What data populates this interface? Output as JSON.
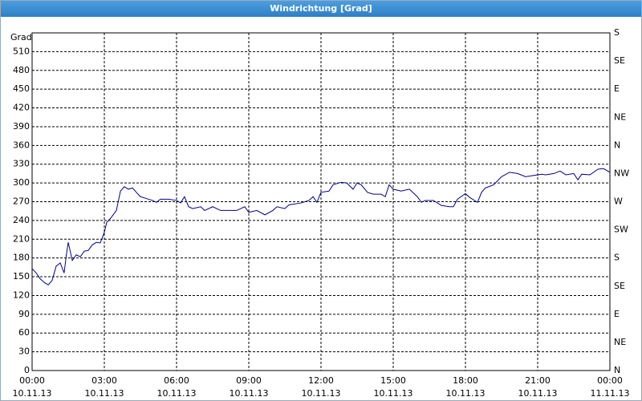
{
  "window_title": "Windrichtung [Grad]",
  "chart_data": {
    "type": "line",
    "y_label": "Grad",
    "x": [
      0,
      0.17,
      0.33,
      0.5,
      0.67,
      0.83,
      1,
      1.17,
      1.33,
      1.43,
      1.5,
      1.67,
      1.83,
      2,
      2.17,
      2.33,
      2.5,
      2.67,
      2.83,
      3,
      3.1,
      3.27,
      3.5,
      3.67,
      3.83,
      4,
      4.17,
      4.33,
      4.5,
      4.67,
      5,
      5.17,
      5.33,
      5.67,
      6,
      6.17,
      6.33,
      6.5,
      6.67,
      7,
      7.17,
      7.5,
      7.83,
      8.17,
      8.5,
      8.83,
      9,
      9.33,
      9.67,
      10,
      10.17,
      10.5,
      10.67,
      11.17,
      11.5,
      11.67,
      11.83,
      12,
      12.33,
      12.5,
      12.83,
      13.07,
      13.33,
      13.5,
      13.67,
      13.93,
      14.17,
      14.5,
      14.67,
      14.83,
      15,
      15.33,
      15.67,
      16,
      16.17,
      16.33,
      16.67,
      17,
      17.33,
      17.5,
      17.67,
      18,
      18.17,
      18.5,
      18.67,
      18.83,
      19.17,
      19.5,
      19.83,
      20.17,
      20.5,
      20.83,
      21.17,
      21.33,
      21.67,
      21.93,
      22.17,
      22.5,
      22.67,
      22.83,
      23.17,
      23.5,
      23.73,
      24
    ],
    "series": [
      {
        "name": "Windrichtung",
        "color": "#00008b",
        "values": [
          163,
          156,
          147,
          141,
          137,
          144,
          167,
          172,
          156,
          187,
          205,
          176,
          185,
          182,
          191,
          192,
          201,
          205,
          204,
          221,
          237,
          244,
          256,
          287,
          294,
          290,
          292,
          285,
          278,
          276,
          272,
          269,
          274,
          274,
          272,
          268,
          278,
          262,
          259,
          262,
          256,
          262,
          256,
          256,
          256,
          262,
          253,
          256,
          249,
          256,
          262,
          259,
          265,
          268,
          272,
          278,
          269,
          285,
          287,
          297,
          301,
          300,
          290,
          300,
          297,
          285,
          282,
          282,
          278,
          297,
          290,
          287,
          290,
          278,
          269,
          272,
          272,
          264,
          262,
          262,
          274,
          283,
          277,
          269,
          285,
          292,
          297,
          310,
          317,
          315,
          310,
          312,
          314,
          313,
          315,
          319,
          313,
          315,
          305,
          314,
          313,
          322,
          323,
          317
        ]
      }
    ],
    "xlim": [
      0,
      24
    ],
    "xticks": [
      {
        "value": 0,
        "label": "00:00",
        "sublabel": "10.11.13"
      },
      {
        "value": 3,
        "label": "03:00",
        "sublabel": "10.11.13"
      },
      {
        "value": 6,
        "label": "06:00",
        "sublabel": "10.11.13"
      },
      {
        "value": 9,
        "label": "09:00",
        "sublabel": "10.11.13"
      },
      {
        "value": 12,
        "label": "12:00",
        "sublabel": "10.11.13"
      },
      {
        "value": 15,
        "label": "15:00",
        "sublabel": "10.11.13"
      },
      {
        "value": 18,
        "label": "18:00",
        "sublabel": "10.11.13"
      },
      {
        "value": 21,
        "label": "21:00",
        "sublabel": "10.11.13"
      },
      {
        "value": 24,
        "label": "00:00",
        "sublabel": "11.11.13"
      }
    ],
    "ylim": [
      0,
      540
    ],
    "yticks": [
      0,
      30,
      60,
      90,
      120,
      150,
      180,
      210,
      240,
      270,
      300,
      330,
      360,
      390,
      420,
      450,
      480,
      510
    ],
    "y2lim": [
      0,
      540
    ],
    "y2ticks": [
      {
        "value": 0,
        "label": "N"
      },
      {
        "value": 45,
        "label": "NE"
      },
      {
        "value": 90,
        "label": "E"
      },
      {
        "value": 135,
        "label": "SE"
      },
      {
        "value": 180,
        "label": "S"
      },
      {
        "value": 225,
        "label": "SW"
      },
      {
        "value": 270,
        "label": "W"
      },
      {
        "value": 315,
        "label": "NW"
      },
      {
        "value": 360,
        "label": "N"
      },
      {
        "value": 405,
        "label": "NE"
      },
      {
        "value": 450,
        "label": "E"
      },
      {
        "value": 495,
        "label": "SE"
      },
      {
        "value": 540,
        "label": "S"
      }
    ],
    "grid": true
  }
}
